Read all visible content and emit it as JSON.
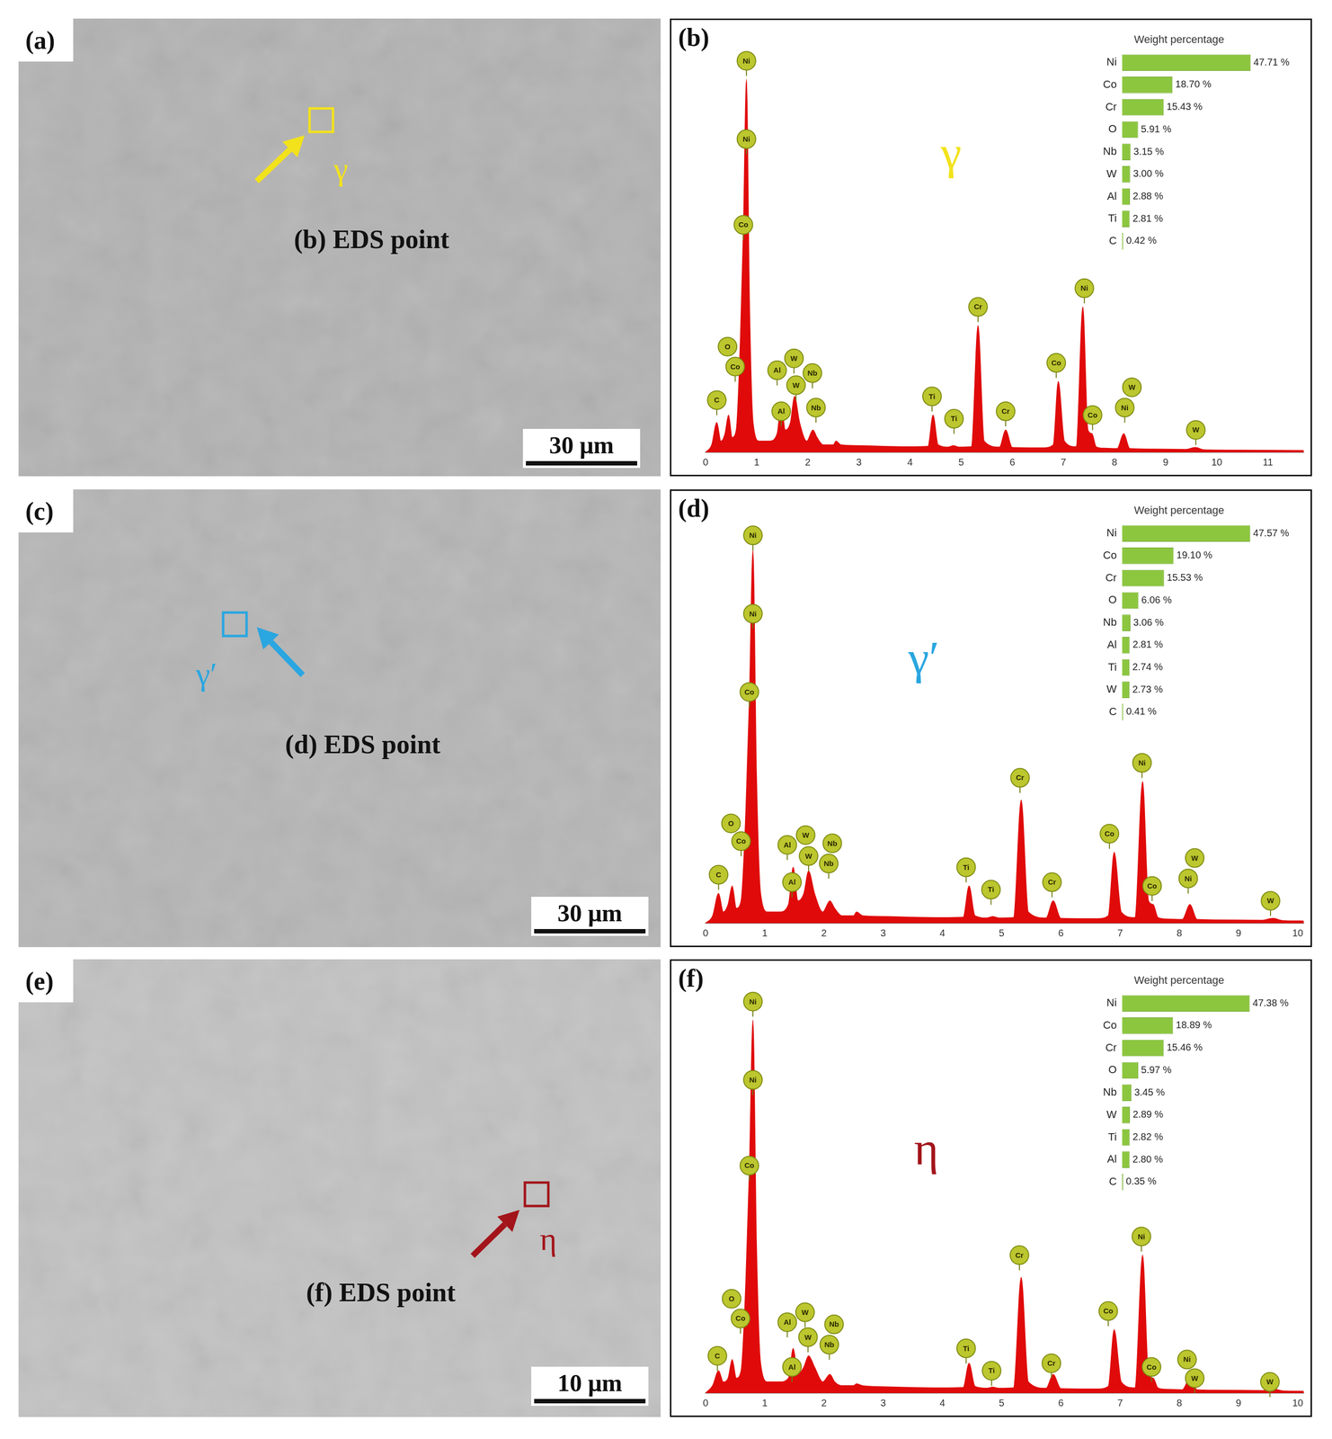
{
  "image_panels": [
    {
      "letter": "(a)",
      "phase": "γ",
      "point_label": "(b) EDS point",
      "scale_bar": "30 μm"
    },
    {
      "letter": "(c)",
      "phase": "γ′",
      "point_label": "(d) EDS point",
      "scale_bar": "30 μm"
    },
    {
      "letter": "(e)",
      "phase": "η",
      "point_label": "(f) EDS point",
      "scale_bar": "10 μm"
    }
  ],
  "chart_data": [
    {
      "type": "line",
      "panel": "(b)",
      "phase_label": "γ",
      "x": [
        0,
        0.12,
        0.22,
        0.3,
        0.38,
        0.45,
        0.52,
        0.6,
        0.68,
        0.74,
        0.8,
        0.86,
        0.93,
        1.05,
        1.25,
        1.4,
        1.48,
        1.56,
        1.66,
        1.74,
        1.84,
        1.98,
        2.1,
        2.18,
        2.3,
        2.5,
        2.55,
        2.65,
        3,
        3.5,
        4,
        4.35,
        4.45,
        4.55,
        4.75,
        4.85,
        4.95,
        5.2,
        5.33,
        5.45,
        5.75,
        5.87,
        6,
        6.6,
        6.8,
        6.9,
        7.02,
        7.25,
        7.38,
        7.48,
        7.56,
        7.64,
        7.8,
        8.05,
        8.18,
        8.3,
        8.6,
        9.4,
        9.58,
        9.75,
        10.5,
        11.7
      ],
      "values": [
        0,
        2,
        8,
        3,
        5,
        10,
        4,
        6,
        30,
        60,
        100,
        40,
        8,
        3,
        3,
        5,
        13,
        6,
        8,
        15,
        8,
        3,
        6,
        4,
        2,
        2,
        3,
        2,
        1.8,
        1.6,
        1.5,
        1.6,
        10,
        2,
        1.4,
        1.8,
        1.4,
        1.5,
        34,
        3,
        1.4,
        6,
        1.3,
        1.2,
        2,
        19,
        3,
        1.5,
        39,
        6,
        5,
        1.5,
        1.1,
        1,
        5,
        1,
        0.9,
        0.8,
        1.3,
        0.7,
        0.6,
        0.5
      ],
      "color": "#e00a0a",
      "xlim": [
        0,
        11.7
      ],
      "xticks": [
        0,
        1,
        2,
        3,
        4,
        5,
        6,
        7,
        8,
        9,
        10,
        11
      ],
      "ylim": [
        0,
        112
      ],
      "tick_labels": "x",
      "grid": false,
      "annotations": [
        {
          "text": "Ni",
          "x": 0.8,
          "y": 105
        },
        {
          "text": "Ni",
          "x": 0.8,
          "y": 84
        },
        {
          "text": "Co",
          "x": 0.74,
          "y": 61
        },
        {
          "text": "Co",
          "x": 0.58,
          "y": 23
        },
        {
          "text": "O",
          "x": 0.43,
          "y": 21
        },
        {
          "text": "C",
          "x": 0.22,
          "y": 14
        },
        {
          "text": "Al",
          "x": 1.4,
          "y": 22
        },
        {
          "text": "W",
          "x": 1.73,
          "y": 21
        },
        {
          "text": "W",
          "x": 1.77,
          "y": 18
        },
        {
          "text": "Nb",
          "x": 2.09,
          "y": 16
        },
        {
          "text": "Al",
          "x": 1.48,
          "y": 11
        },
        {
          "text": "Nb",
          "x": 2.16,
          "y": 12
        },
        {
          "text": "Ti",
          "x": 4.43,
          "y": 15
        },
        {
          "text": "Ti",
          "x": 4.86,
          "y": 9
        },
        {
          "text": "Cr",
          "x": 5.33,
          "y": 39
        },
        {
          "text": "Cr",
          "x": 5.87,
          "y": 11
        },
        {
          "text": "Co",
          "x": 6.86,
          "y": 24
        },
        {
          "text": "Ni",
          "x": 7.41,
          "y": 44
        },
        {
          "text": "Co",
          "x": 7.57,
          "y": 10
        },
        {
          "text": "Ni",
          "x": 8.2,
          "y": 12
        },
        {
          "text": "W",
          "x": 8.34,
          "y": 8
        },
        {
          "text": "W",
          "x": 9.59,
          "y": 6
        }
      ]
    },
    {
      "type": "bar",
      "orientation": "horizontal",
      "title": "Weight percentage",
      "categories": [
        "Ni",
        "Co",
        "Cr",
        "O",
        "Nb",
        "W",
        "Al",
        "Ti",
        "C"
      ],
      "values": [
        47.71,
        18.7,
        15.43,
        5.91,
        3.15,
        3.0,
        2.88,
        2.81,
        0.42
      ],
      "value_labels": [
        "47.71 %",
        "18.70 %",
        "15.43 %",
        "5.91 %",
        "3.15 %",
        "3.00 %",
        "2.88 %",
        "2.81 %",
        "0.42 %"
      ],
      "data_labels": true,
      "color": "#8cc63f",
      "xlim": [
        0,
        50
      ],
      "tick_labels": "y",
      "grid": false
    },
    {
      "type": "line",
      "panel": "(d)",
      "phase_label": "γ′",
      "x": [
        0,
        0.12,
        0.22,
        0.3,
        0.38,
        0.45,
        0.52,
        0.6,
        0.68,
        0.74,
        0.8,
        0.86,
        0.93,
        1.05,
        1.25,
        1.4,
        1.48,
        1.56,
        1.66,
        1.74,
        1.84,
        1.98,
        2.1,
        2.18,
        2.3,
        2.5,
        2.55,
        2.65,
        3,
        3.5,
        4,
        4.35,
        4.45,
        4.55,
        4.75,
        4.85,
        4.95,
        5.2,
        5.33,
        5.45,
        5.75,
        5.87,
        6,
        6.6,
        6.8,
        6.9,
        7.02,
        7.25,
        7.38,
        7.48,
        7.56,
        7.64,
        7.8,
        8.05,
        8.18,
        8.3,
        8.6,
        9.4,
        9.58,
        9.75,
        10.1
      ],
      "values": [
        0,
        2,
        8,
        3,
        5,
        10,
        4,
        6,
        30,
        60,
        100,
        40,
        8,
        3,
        3,
        5,
        15,
        6,
        8,
        14,
        8,
        3,
        6,
        4,
        2,
        2,
        3,
        2,
        1.8,
        1.6,
        1.5,
        1.6,
        10,
        2,
        1.4,
        1.8,
        1.4,
        1.5,
        33,
        3,
        1.4,
        6,
        1.3,
        1.2,
        2,
        19,
        3,
        1.5,
        38,
        6,
        5,
        1.5,
        1.1,
        1,
        5,
        1,
        0.9,
        0.8,
        1.3,
        0.7,
        0.6
      ],
      "color": "#e00a0a",
      "xlim": [
        0,
        10.1
      ],
      "xticks": [
        0,
        1,
        2,
        3,
        4,
        5,
        6,
        7,
        8,
        9,
        10
      ],
      "ylim": [
        0,
        112
      ],
      "tick_labels": "x",
      "grid": false,
      "annotations": [
        {
          "text": "Ni",
          "x": 0.8,
          "y": 104
        },
        {
          "text": "Ni",
          "x": 0.8,
          "y": 83
        },
        {
          "text": "Co",
          "x": 0.74,
          "y": 62
        },
        {
          "text": "Co",
          "x": 0.6,
          "y": 22
        },
        {
          "text": "O",
          "x": 0.43,
          "y": 21
        },
        {
          "text": "C",
          "x": 0.22,
          "y": 13
        },
        {
          "text": "Al",
          "x": 1.38,
          "y": 21
        },
        {
          "text": "W",
          "x": 1.69,
          "y": 21
        },
        {
          "text": "W",
          "x": 1.74,
          "y": 18
        },
        {
          "text": "Nb",
          "x": 2.08,
          "y": 16
        },
        {
          "text": "Al",
          "x": 1.46,
          "y": 11
        },
        {
          "text": "Nb",
          "x": 2.14,
          "y": 12
        },
        {
          "text": "Ti",
          "x": 4.4,
          "y": 15
        },
        {
          "text": "Ti",
          "x": 4.82,
          "y": 9
        },
        {
          "text": "Cr",
          "x": 5.31,
          "y": 39
        },
        {
          "text": "Cr",
          "x": 5.85,
          "y": 11
        },
        {
          "text": "Co",
          "x": 6.82,
          "y": 24
        },
        {
          "text": "Ni",
          "x": 7.37,
          "y": 43
        },
        {
          "text": "Co",
          "x": 7.54,
          "y": 10
        },
        {
          "text": "Ni",
          "x": 8.15,
          "y": 12
        },
        {
          "text": "W",
          "x": 8.26,
          "y": 7
        },
        {
          "text": "W",
          "x": 9.54,
          "y": 6
        }
      ]
    },
    {
      "type": "bar",
      "orientation": "horizontal",
      "title": "Weight percentage",
      "categories": [
        "Ni",
        "Co",
        "Cr",
        "O",
        "Nb",
        "Al",
        "Ti",
        "W",
        "C"
      ],
      "values": [
        47.57,
        19.1,
        15.53,
        6.06,
        3.06,
        2.81,
        2.74,
        2.73,
        0.41
      ],
      "value_labels": [
        "47.57 %",
        "19.10 %",
        "15.53 %",
        "6.06 %",
        "3.06 %",
        "2.81 %",
        "2.74 %",
        "2.73 %",
        "0.41 %"
      ],
      "data_labels": true,
      "color": "#8cc63f",
      "xlim": [
        0,
        50
      ],
      "tick_labels": "y",
      "grid": false
    },
    {
      "type": "line",
      "panel": "(f)",
      "phase_label": "η",
      "x": [
        0,
        0.12,
        0.22,
        0.3,
        0.38,
        0.45,
        0.52,
        0.6,
        0.68,
        0.74,
        0.8,
        0.86,
        0.93,
        1.05,
        1.25,
        1.4,
        1.48,
        1.56,
        1.66,
        1.74,
        1.84,
        1.98,
        2.1,
        2.18,
        2.3,
        2.5,
        2.55,
        2.65,
        3,
        3.5,
        4,
        4.35,
        4.45,
        4.55,
        4.75,
        4.85,
        4.95,
        5.2,
        5.33,
        5.45,
        5.75,
        5.87,
        6,
        6.6,
        6.8,
        6.9,
        7.02,
        7.25,
        7.38,
        7.48,
        7.56,
        7.64,
        7.8,
        8.05,
        8.18,
        8.3,
        8.6,
        9.4,
        9.58,
        9.75,
        10.1
      ],
      "values": [
        0,
        2,
        6,
        3,
        4,
        9,
        4,
        6,
        30,
        60,
        100,
        40,
        8,
        3,
        3,
        4,
        12,
        5,
        7,
        10,
        7,
        3,
        5,
        3,
        2,
        2,
        2.5,
        2,
        1.7,
        1.5,
        1.4,
        1.5,
        8,
        1.8,
        1.3,
        1.6,
        1.3,
        1.4,
        31,
        3,
        1.3,
        5,
        1.2,
        1.1,
        1.8,
        17,
        3,
        1.4,
        37,
        5,
        4,
        1.4,
        1,
        0.9,
        4,
        0.9,
        0.8,
        0.7,
        1.1,
        0.6,
        0.5
      ],
      "color": "#e00a0a",
      "xlim": [
        0,
        10.1
      ],
      "xticks": [
        0,
        1,
        2,
        3,
        4,
        5,
        6,
        7,
        8,
        9,
        10
      ],
      "ylim": [
        0,
        112
      ],
      "tick_labels": "x",
      "grid": false,
      "annotations": [
        {
          "text": "Ni",
          "x": 0.8,
          "y": 105
        },
        {
          "text": "Ni",
          "x": 0.8,
          "y": 84
        },
        {
          "text": "Co",
          "x": 0.74,
          "y": 61
        },
        {
          "text": "Co",
          "x": 0.59,
          "y": 20
        },
        {
          "text": "O",
          "x": 0.44,
          "y": 19
        },
        {
          "text": "C",
          "x": 0.2,
          "y": 10
        },
        {
          "text": "Al",
          "x": 1.38,
          "y": 19
        },
        {
          "text": "W",
          "x": 1.68,
          "y": 18
        },
        {
          "text": "W",
          "x": 1.73,
          "y": 15
        },
        {
          "text": "Nb",
          "x": 2.09,
          "y": 13
        },
        {
          "text": "Al",
          "x": 1.46,
          "y": 7
        },
        {
          "text": "Nb",
          "x": 2.17,
          "y": 9
        },
        {
          "text": "Ti",
          "x": 4.4,
          "y": 12
        },
        {
          "text": "Ti",
          "x": 4.83,
          "y": 6
        },
        {
          "text": "Cr",
          "x": 5.3,
          "y": 37
        },
        {
          "text": "Cr",
          "x": 5.84,
          "y": 8
        },
        {
          "text": "Co",
          "x": 6.8,
          "y": 22
        },
        {
          "text": "Ni",
          "x": 7.36,
          "y": 42
        },
        {
          "text": "Co",
          "x": 7.53,
          "y": 7
        },
        {
          "text": "Ni",
          "x": 8.13,
          "y": 9
        },
        {
          "text": "W",
          "x": 8.26,
          "y": 4
        },
        {
          "text": "W",
          "x": 9.53,
          "y": 3
        }
      ]
    },
    {
      "type": "bar",
      "orientation": "horizontal",
      "title": "Weight percentage",
      "categories": [
        "Ni",
        "Co",
        "Cr",
        "O",
        "Nb",
        "W",
        "Ti",
        "Al",
        "C"
      ],
      "values": [
        47.38,
        18.89,
        15.46,
        5.97,
        3.45,
        2.89,
        2.82,
        2.8,
        0.35
      ],
      "value_labels": [
        "47.38 %",
        "18.89 %",
        "15.46 %",
        "5.97 %",
        "3.45 %",
        "2.89 %",
        "2.82 %",
        "2.80 %",
        "0.35 %"
      ],
      "data_labels": true,
      "color": "#8cc63f",
      "xlim": [
        0,
        50
      ],
      "tick_labels": "y",
      "grid": false
    }
  ]
}
